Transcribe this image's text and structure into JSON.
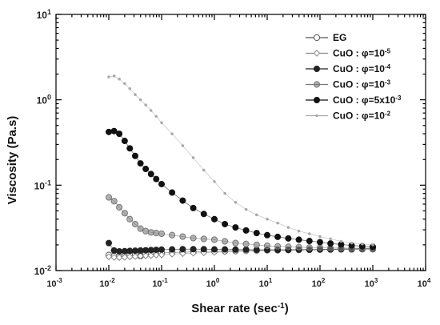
{
  "chart_data": {
    "type": "scatter",
    "x_scale": "log",
    "y_scale": "log",
    "xlabel": "Shear rate (sec⁻¹)",
    "ylabel": "Viscosity (Pa.s)",
    "xlim": [
      0.001,
      10000
    ],
    "ylim": [
      0.01,
      10
    ],
    "x_tick_labels": [
      {
        "base": "10",
        "exp": "-3"
      },
      {
        "base": "10",
        "exp": "-2"
      },
      {
        "base": "10",
        "exp": "-1"
      },
      {
        "base": "10",
        "exp": "0"
      },
      {
        "base": "10",
        "exp": "1"
      },
      {
        "base": "10",
        "exp": "2"
      },
      {
        "base": "10",
        "exp": "3"
      },
      {
        "base": "10",
        "exp": "4"
      }
    ],
    "y_tick_labels": [
      {
        "base": "10",
        "exp": "-2"
      },
      {
        "base": "10",
        "exp": "-1"
      },
      {
        "base": "10",
        "exp": "0"
      },
      {
        "base": "10",
        "exp": "1"
      }
    ],
    "grid": false,
    "legend_position": "top-right",
    "series": [
      {
        "name": "EG",
        "legend_parts": {
          "prefix": "EG",
          "base": "",
          "exp": ""
        },
        "color": "#555555",
        "marker": "open-circle",
        "x": [
          0.01,
          0.0126,
          0.0158,
          0.02,
          0.025,
          0.0316,
          0.0398,
          0.05,
          0.063,
          0.079,
          0.1,
          0.158,
          0.251,
          0.398,
          0.631,
          1,
          1.58,
          2.51,
          3.98,
          6.31,
          10,
          15.8,
          25.1,
          39.8,
          63.1,
          100,
          158,
          251,
          398,
          631,
          1000
        ],
        "y": [
          0.0152,
          0.0148,
          0.0146,
          0.0148,
          0.0152,
          0.0155,
          0.0148,
          0.0156,
          0.0158,
          0.016,
          0.0161,
          0.0163,
          0.0164,
          0.0166,
          0.0167,
          0.0168,
          0.0169,
          0.017,
          0.0171,
          0.0172,
          0.0173,
          0.0173,
          0.0174,
          0.0175,
          0.0175,
          0.0176,
          0.0176,
          0.0177,
          0.0177,
          0.0178,
          0.0178
        ]
      },
      {
        "name": "CuO : φ=10-5",
        "legend_parts": {
          "prefix": "CuO : φ=",
          "base": "10",
          "exp": "-5"
        },
        "color": "#888888",
        "marker": "open-diamond",
        "x": [
          0.01,
          0.0126,
          0.0158,
          0.02,
          0.025,
          0.0316,
          0.0398,
          0.05,
          0.063,
          0.079,
          0.1,
          0.158,
          0.251,
          0.398,
          0.631,
          1,
          1.58,
          2.51,
          3.98,
          6.31,
          10,
          15.8,
          25.1,
          39.8,
          63.1,
          100,
          158,
          251,
          398,
          631,
          1000
        ],
        "y": [
          0.0145,
          0.0143,
          0.0142,
          0.0143,
          0.0145,
          0.0146,
          0.0148,
          0.0149,
          0.015,
          0.0152,
          0.0153,
          0.0156,
          0.0158,
          0.016,
          0.0162,
          0.0164,
          0.0166,
          0.0168,
          0.0169,
          0.017,
          0.0171,
          0.0172,
          0.0173,
          0.0174,
          0.0175,
          0.0175,
          0.0176,
          0.0177,
          0.0178,
          0.0179,
          0.018
        ]
      },
      {
        "name": "CuO : φ=10-4",
        "legend_parts": {
          "prefix": "CuO : φ=",
          "base": "10",
          "exp": "-4"
        },
        "color": "#222222",
        "marker": "filled-circle",
        "x": [
          0.01,
          0.0126,
          0.0158,
          0.02,
          0.025,
          0.0316,
          0.0398,
          0.05,
          0.063,
          0.079,
          0.1,
          0.158,
          0.251,
          0.398,
          0.631,
          1,
          1.58,
          2.51,
          3.98,
          6.31,
          10,
          15.8,
          25.1,
          39.8,
          63.1,
          100,
          158,
          251,
          398,
          631,
          1000
        ],
        "y": [
          0.021,
          0.0172,
          0.0168,
          0.0169,
          0.017,
          0.0171,
          0.0172,
          0.0173,
          0.0174,
          0.0175,
          0.0176,
          0.0177,
          0.0178,
          0.0178,
          0.0178,
          0.0177,
          0.0177,
          0.0176,
          0.0176,
          0.0175,
          0.0175,
          0.0175,
          0.0175,
          0.0176,
          0.0176,
          0.0177,
          0.0178,
          0.0179,
          0.018,
          0.0181,
          0.0182
        ]
      },
      {
        "name": "CuO : φ=10-3",
        "legend_parts": {
          "prefix": "CuO : φ=",
          "base": "10",
          "exp": "-3"
        },
        "color": "#777777",
        "marker": "half-circle",
        "x": [
          0.01,
          0.0126,
          0.0158,
          0.02,
          0.025,
          0.0316,
          0.0398,
          0.05,
          0.063,
          0.079,
          0.1,
          0.158,
          0.251,
          0.398,
          0.631,
          1,
          1.58,
          2.51,
          3.98,
          6.31,
          10,
          15.8,
          25.1,
          39.8,
          63.1,
          100,
          158,
          251,
          398,
          631,
          1000
        ],
        "y": [
          0.072,
          0.065,
          0.055,
          0.047,
          0.04,
          0.035,
          0.031,
          0.029,
          0.028,
          0.0275,
          0.027,
          0.026,
          0.025,
          0.024,
          0.0235,
          0.023,
          0.022,
          0.021,
          0.0205,
          0.02,
          0.0195,
          0.0192,
          0.019,
          0.0188,
          0.0186,
          0.0185,
          0.0184,
          0.0184,
          0.0183,
          0.0183,
          0.0183
        ]
      },
      {
        "name": "CuO : φ=5x10-3",
        "legend_parts": {
          "prefix": "CuO : φ=5x",
          "base": "10",
          "exp": "-3"
        },
        "color": "#111111",
        "marker": "filled-circle",
        "x": [
          0.01,
          0.0126,
          0.0158,
          0.02,
          0.025,
          0.0316,
          0.0398,
          0.05,
          0.063,
          0.079,
          0.1,
          0.158,
          0.251,
          0.398,
          0.631,
          1,
          1.58,
          2.51,
          3.98,
          6.31,
          10,
          15.8,
          25.1,
          39.8,
          63.1,
          100,
          158,
          251,
          398,
          631,
          1000
        ],
        "y": [
          0.42,
          0.43,
          0.4,
          0.33,
          0.27,
          0.22,
          0.18,
          0.155,
          0.135,
          0.118,
          0.103,
          0.082,
          0.066,
          0.054,
          0.046,
          0.04,
          0.035,
          0.032,
          0.0295,
          0.0275,
          0.026,
          0.0248,
          0.0238,
          0.023,
          0.0222,
          0.0215,
          0.0208,
          0.0202,
          0.0197,
          0.0193,
          0.019
        ]
      },
      {
        "name": "CuO : φ=10-2",
        "legend_parts": {
          "prefix": "CuO : φ=",
          "base": "10",
          "exp": "-2"
        },
        "color": "#a8a8a8",
        "marker": "dot",
        "x": [
          0.01,
          0.0126,
          0.0158,
          0.02,
          0.025,
          0.0316,
          0.0398,
          0.05,
          0.063,
          0.079,
          0.1,
          0.158,
          0.251,
          0.398,
          0.631,
          1,
          1.58,
          2.51,
          3.98,
          6.31,
          10,
          15.8,
          25.1,
          39.8,
          63.1,
          100,
          158,
          251,
          398,
          631,
          1000
        ],
        "y": [
          1.85,
          1.9,
          1.75,
          1.55,
          1.35,
          1.15,
          1.0,
          0.87,
          0.75,
          0.64,
          0.54,
          0.4,
          0.29,
          0.21,
          0.15,
          0.11,
          0.08,
          0.063,
          0.052,
          0.045,
          0.04,
          0.036,
          0.032,
          0.029,
          0.027,
          0.025,
          0.0235,
          0.022,
          0.021,
          0.0205,
          0.02
        ]
      }
    ]
  }
}
